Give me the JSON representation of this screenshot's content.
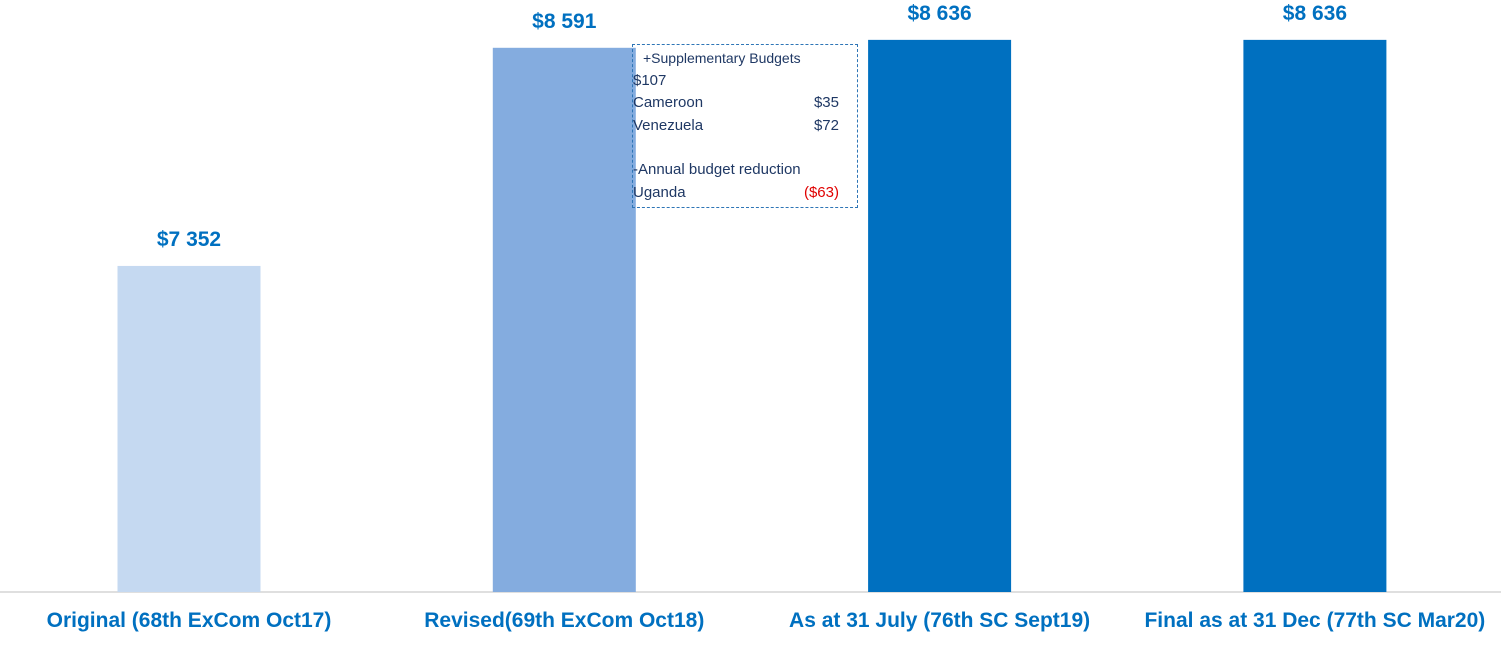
{
  "chart_data": {
    "type": "bar",
    "categories": [
      "Original (68th ExCom Oct17)",
      "Revised(69th ExCom Oct18)",
      "As at 31 July (76th SC Sept19)",
      "Final as at 31 Dec (77th SC Mar20)"
    ],
    "values": [
      7352,
      8591,
      8636,
      8636
    ],
    "value_labels": [
      "$7 352",
      "$8 591",
      "$8 636",
      "$8 636"
    ],
    "colors": [
      "#c5d9f1",
      "#84acdf",
      "#0070c0",
      "#0070c0"
    ],
    "ylim": [
      5500,
      8800
    ],
    "annotation": {
      "heading": "+Supplementary Budgets",
      "total": "$107",
      "items": [
        {
          "name": "Cameroon",
          "amount": "$35"
        },
        {
          "name": "Venezuela",
          "amount": "$72"
        }
      ],
      "reduction_heading": "-Annual budget reduction",
      "reduction_items": [
        {
          "name": "Uganda",
          "amount": "($63)"
        }
      ]
    }
  }
}
